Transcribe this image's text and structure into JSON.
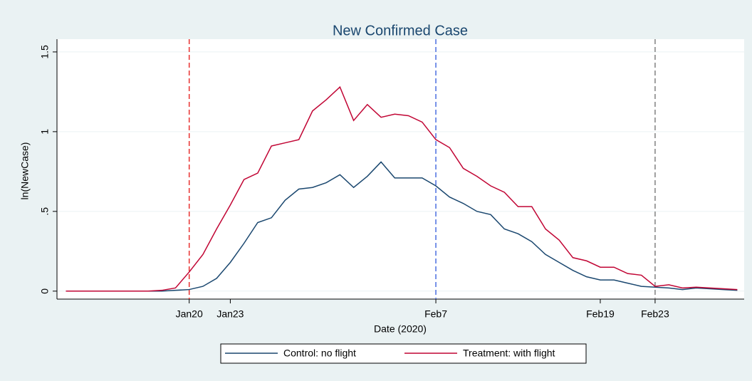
{
  "chart_data": {
    "type": "line",
    "title": "New Confirmed Case",
    "x_label": "Date (2020)",
    "y_label": "ln(NewCase)",
    "x": [
      11,
      12,
      13,
      14,
      15,
      16,
      17,
      18,
      19,
      20,
      21,
      22,
      23,
      24,
      25,
      26,
      27,
      28,
      29,
      30,
      31,
      32,
      33,
      34,
      35,
      36,
      37,
      38,
      39,
      40,
      41,
      42,
      43,
      44,
      45,
      46,
      47,
      48,
      49,
      50,
      51,
      52,
      53,
      54,
      55,
      56,
      57,
      58,
      59,
      60
    ],
    "series": [
      {
        "name": "Control: no flight",
        "color": "#1a476f",
        "values": [
          0,
          0,
          0,
          0,
          0,
          0,
          0,
          0,
          0.005,
          0.01,
          0.03,
          0.08,
          0.18,
          0.3,
          0.43,
          0.46,
          0.57,
          0.64,
          0.65,
          0.68,
          0.73,
          0.65,
          0.72,
          0.81,
          0.71,
          0.71,
          0.71,
          0.66,
          0.59,
          0.55,
          0.5,
          0.48,
          0.39,
          0.36,
          0.31,
          0.23,
          0.18,
          0.13,
          0.09,
          0.07,
          0.07,
          0.05,
          0.03,
          0.025,
          0.02,
          0.01,
          0.02,
          0.015,
          0.01,
          0.005
        ]
      },
      {
        "name": "Treatment: with flight",
        "color": "#c10534",
        "values": [
          0,
          0,
          0,
          0,
          0,
          0,
          0,
          0.005,
          0.02,
          0.12,
          0.23,
          0.39,
          0.54,
          0.7,
          0.74,
          0.91,
          0.93,
          0.95,
          1.13,
          1.2,
          1.28,
          1.07,
          1.17,
          1.09,
          1.11,
          1.1,
          1.06,
          0.95,
          0.9,
          0.77,
          0.72,
          0.66,
          0.62,
          0.53,
          0.53,
          0.39,
          0.32,
          0.21,
          0.19,
          0.15,
          0.15,
          0.11,
          0.1,
          0.03,
          0.04,
          0.02,
          0.025,
          0.02,
          0.015,
          0.01
        ]
      }
    ],
    "xlim": [
      10.35,
      60.5
    ],
    "xticks": [
      {
        "value": 20,
        "label": "Jan20"
      },
      {
        "value": 23,
        "label": "Jan23"
      },
      {
        "value": 38,
        "label": "Feb7"
      },
      {
        "value": 50,
        "label": "Feb19"
      },
      {
        "value": 54,
        "label": "Feb23"
      }
    ],
    "ylim": [
      -0.05,
      1.58
    ],
    "yticks": [
      0,
      {
        "value": 0.5,
        "label": ".5"
      },
      1,
      1.5
    ],
    "grid": true,
    "reference_lines": [
      {
        "x": 20,
        "color": "#e8312f"
      },
      {
        "x": 38,
        "color": "#4a6ee0"
      },
      {
        "x": 54,
        "color": "#808080"
      }
    ],
    "legend": "bottom"
  }
}
